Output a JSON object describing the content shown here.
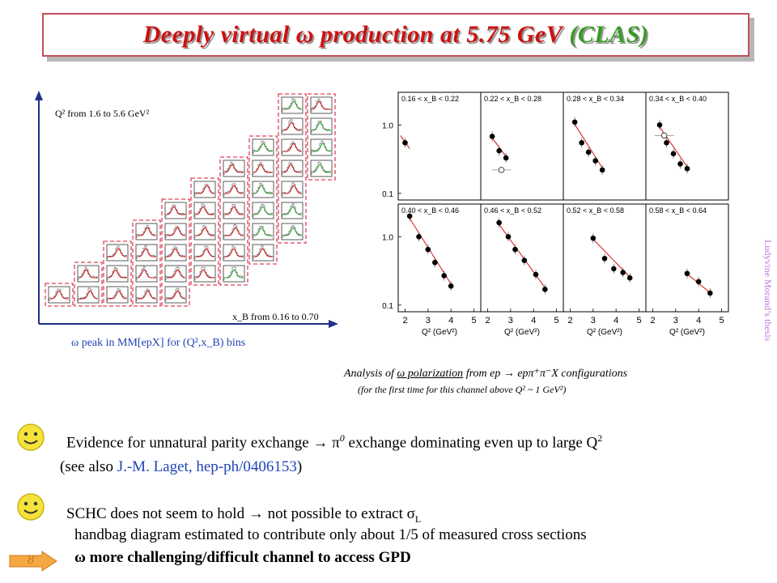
{
  "title": {
    "main": "Deeply virtual ω production at 5.75 GeV",
    "suffix": "(CLAS)"
  },
  "left_figure": {
    "q2_label": "Q² from 1.6 to 5.6 GeV²",
    "xb_label": "x_B from  0.16 to 0.70",
    "caption": "ω peak in MM[epX] for (Q²,x_B) bins"
  },
  "right_figure": {
    "vertical_credit": "Ludyvine Morand’s thesis",
    "caption_prefix": "Analysis of",
    "caption_underlined": "ω polarization",
    "caption_suffix": "from ep → epπ⁺π⁻X configurations",
    "caption_sub": "(for the first time for this channel above Q² ~ 1 GeV²)"
  },
  "chart_data": {
    "type": "scatter",
    "panels": [
      {
        "label": "0.16 < x_B < 0.22",
        "points": [
          {
            "x": 2.0,
            "y": 0.55
          }
        ]
      },
      {
        "label": "0.22 < x_B < 0.28",
        "points": [
          {
            "x": 2.2,
            "y": 0.68
          },
          {
            "x": 2.5,
            "y": 0.42
          },
          {
            "x": 2.8,
            "y": 0.33
          }
        ],
        "open_points": [
          {
            "x": 2.6,
            "y": 0.22
          }
        ]
      },
      {
        "label": "0.28 < x_B < 0.34",
        "points": [
          {
            "x": 2.2,
            "y": 1.1
          },
          {
            "x": 2.5,
            "y": 0.55
          },
          {
            "x": 2.8,
            "y": 0.4
          },
          {
            "x": 3.1,
            "y": 0.3
          },
          {
            "x": 3.4,
            "y": 0.22
          }
        ]
      },
      {
        "label": "0.34 < x_B < 0.40",
        "points": [
          {
            "x": 2.3,
            "y": 1.0
          },
          {
            "x": 2.6,
            "y": 0.55
          },
          {
            "x": 2.9,
            "y": 0.38
          },
          {
            "x": 3.2,
            "y": 0.27
          },
          {
            "x": 3.5,
            "y": 0.23
          }
        ],
        "open_points": [
          {
            "x": 2.5,
            "y": 0.7
          }
        ]
      },
      {
        "label": "0.40 < x_B < 0.46",
        "points": [
          {
            "x": 2.2,
            "y": 2.0
          },
          {
            "x": 2.6,
            "y": 1.0
          },
          {
            "x": 3.0,
            "y": 0.65
          },
          {
            "x": 3.3,
            "y": 0.42
          },
          {
            "x": 3.7,
            "y": 0.27
          },
          {
            "x": 4.0,
            "y": 0.19
          }
        ]
      },
      {
        "label": "0.46 < x_B < 0.52",
        "points": [
          {
            "x": 2.5,
            "y": 1.6
          },
          {
            "x": 2.9,
            "y": 1.0
          },
          {
            "x": 3.2,
            "y": 0.65
          },
          {
            "x": 3.6,
            "y": 0.45
          },
          {
            "x": 4.1,
            "y": 0.28
          },
          {
            "x": 4.5,
            "y": 0.17
          }
        ]
      },
      {
        "label": "0.52 < x_B < 0.58",
        "points": [
          {
            "x": 3.0,
            "y": 0.95
          },
          {
            "x": 3.5,
            "y": 0.48
          },
          {
            "x": 3.9,
            "y": 0.34
          },
          {
            "x": 4.3,
            "y": 0.3
          },
          {
            "x": 4.6,
            "y": 0.25
          }
        ]
      },
      {
        "label": "0.58 < x_B < 0.64",
        "points": [
          {
            "x": 3.5,
            "y": 0.29
          },
          {
            "x": 4.0,
            "y": 0.22
          },
          {
            "x": 4.5,
            "y": 0.15
          }
        ]
      }
    ],
    "x_ticks": [
      "2",
      "3",
      "4",
      "5"
    ],
    "y_ticks": [
      "1.0",
      "0.1"
    ],
    "xlabel": "Q² (GeV²)",
    "xlim": [
      1.7,
      5.3
    ],
    "ylim": [
      0.08,
      3.0
    ],
    "log_y": true
  },
  "bullets": [
    {
      "text_a": "Evidence for unnatural parity exchange  → π",
      "sup_a": "0",
      "text_b": " exchange dominating even up to large Q",
      "sup_b": "2",
      "text_c": "(see also ",
      "link": "J.-M. Laget, hep-ph/0406153",
      "text_d": ")"
    },
    {
      "text_a": "SCHC does not seem to hold → not possible to extract σ",
      "sub": "L",
      "text_c": "handbag diagram estimated to contribute only about 1/5 of measured cross sections",
      "text_d": "ω more challenging/difficult channel to access GPD"
    }
  ],
  "page_number": "8",
  "colors": {
    "title": "#cc1111",
    "clas": "#3a9a28",
    "link": "#1f44b5",
    "dashed_box": "#e0405a"
  }
}
